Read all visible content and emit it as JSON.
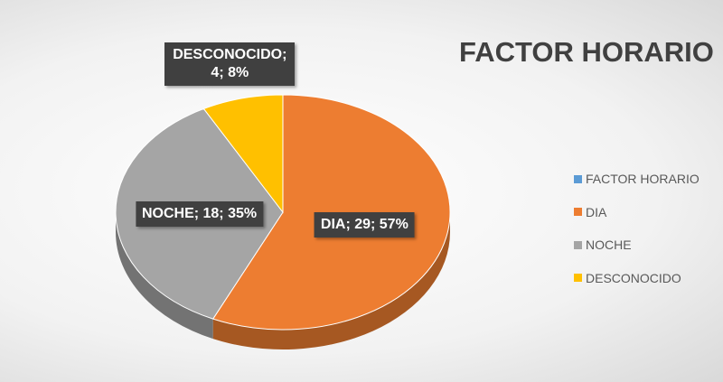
{
  "chart_data": {
    "type": "pie",
    "title": "FACTOR HORARIO",
    "categories": [
      "FACTOR HORARIO",
      "DIA",
      "NOCHE",
      "DESCONOCIDO"
    ],
    "values": [
      null,
      29,
      18,
      4
    ],
    "value_labels": [
      null,
      "DIA; 29; 57%",
      "NOCHE; 18; 35%",
      "DESCONOCIDO; 4; 8%"
    ],
    "colors": [
      "#5b9bd5",
      "#ed7d31",
      "#a5a5a5",
      "#ffc000"
    ],
    "legend": "right"
  }
}
